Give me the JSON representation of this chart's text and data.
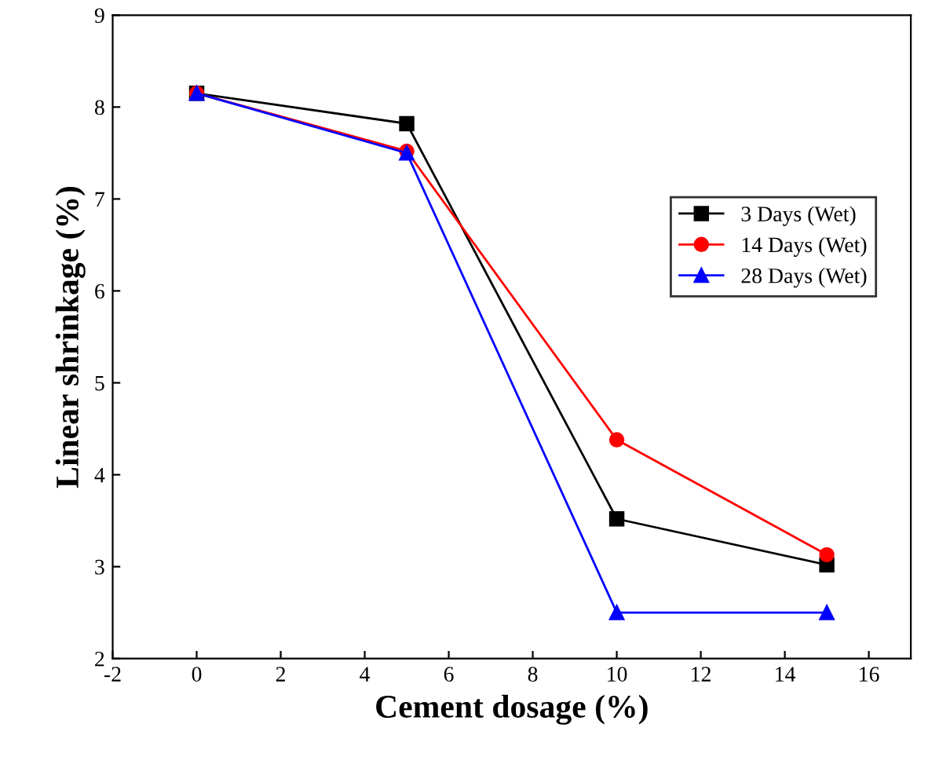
{
  "chart_data": {
    "type": "line",
    "xlabel": "Cement dosage (%)",
    "ylabel": "Linear shrinkage (%)",
    "x": [
      0,
      5,
      10,
      15
    ],
    "series": [
      {
        "name": "3 Days (Wet)",
        "color": "#000000",
        "marker": "square",
        "values": [
          8.15,
          7.82,
          3.52,
          3.02
        ]
      },
      {
        "name": "14 Days (Wet)",
        "color": "#ff0000",
        "marker": "circle",
        "values": [
          8.15,
          7.52,
          4.38,
          3.13
        ]
      },
      {
        "name": "28 Days (Wet)",
        "color": "#0000ff",
        "marker": "triangle",
        "values": [
          8.15,
          7.5,
          2.5,
          2.5
        ]
      }
    ],
    "xlim": [
      -2,
      17
    ],
    "xticks": [
      -2,
      0,
      2,
      4,
      6,
      8,
      10,
      12,
      14,
      16
    ],
    "ylim": [
      2,
      9
    ],
    "yticks": [
      2,
      3,
      4,
      5,
      6,
      7,
      8,
      9
    ],
    "grid": false,
    "legend": "right",
    "line_style": "solid"
  }
}
